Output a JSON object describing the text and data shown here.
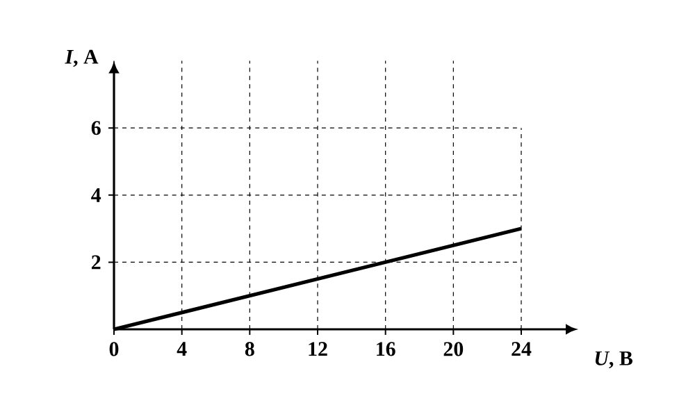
{
  "chart_data": {
    "type": "line",
    "xlabel": "*U*, В",
    "ylabel": "*I*, А",
    "x": [
      0,
      24
    ],
    "series": [
      {
        "color": "#000000",
        "values": [
          0,
          3
        ]
      }
    ],
    "xlim": [
      0,
      24
    ],
    "ylim": [
      0,
      8
    ],
    "xticks": [
      0,
      4,
      8,
      12,
      16,
      20,
      24
    ],
    "yticks": [
      2,
      4,
      6
    ],
    "grid": true,
    "line_style": "solid",
    "marker": "none"
  }
}
